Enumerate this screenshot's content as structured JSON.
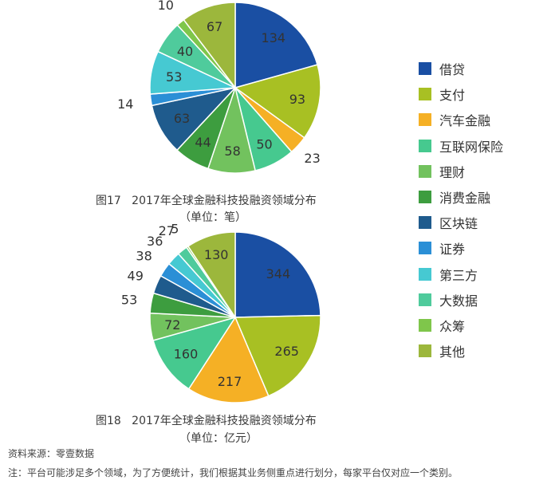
{
  "chart_data": [
    {
      "type": "pie",
      "title": "图17   2017年全球金融科技投融资领域分布",
      "subtitle": "（单位：笔）",
      "categories": [
        "借贷",
        "支付",
        "汽车金融",
        "互联网保险",
        "理财",
        "消费金融",
        "区块链",
        "证券",
        "第三方",
        "大数据",
        "众筹",
        "其他"
      ],
      "values": [
        134,
        93,
        23,
        50,
        58,
        44,
        63,
        14,
        53,
        40,
        10,
        67
      ]
    },
    {
      "type": "pie",
      "title": "图18   2017年全球金融科技投融资领域分布",
      "subtitle": "（单位：亿元）",
      "categories": [
        "借贷",
        "支付",
        "汽车金融",
        "互联网保险",
        "理财",
        "消费金融",
        "区块链",
        "证券",
        "第三方",
        "大数据",
        "众筹",
        "其他"
      ],
      "values": [
        344,
        265,
        217,
        160,
        72,
        53,
        49,
        38,
        36,
        27,
        5,
        130
      ]
    }
  ],
  "legend": {
    "placement": "right",
    "items": [
      "借贷",
      "支付",
      "汽车金融",
      "互联网保险",
      "理财",
      "消费金融",
      "区块链",
      "证券",
      "第三方",
      "大数据",
      "众筹",
      "其他"
    ]
  },
  "colors": [
    "#1a4fa3",
    "#a8c023",
    "#f5b025",
    "#46c98f",
    "#72c25e",
    "#3d9d3f",
    "#1f5b8d",
    "#2b8fd6",
    "#46c9d2",
    "#4fcb9c",
    "#7fc64b",
    "#9cb73c"
  ],
  "footer": {
    "source": "资料来源：零壹数据",
    "note": "注：平台可能涉足多个领域，为了方便统计，我们根据其业务侧重点进行划分，每家平台仅对应一个类别。"
  }
}
